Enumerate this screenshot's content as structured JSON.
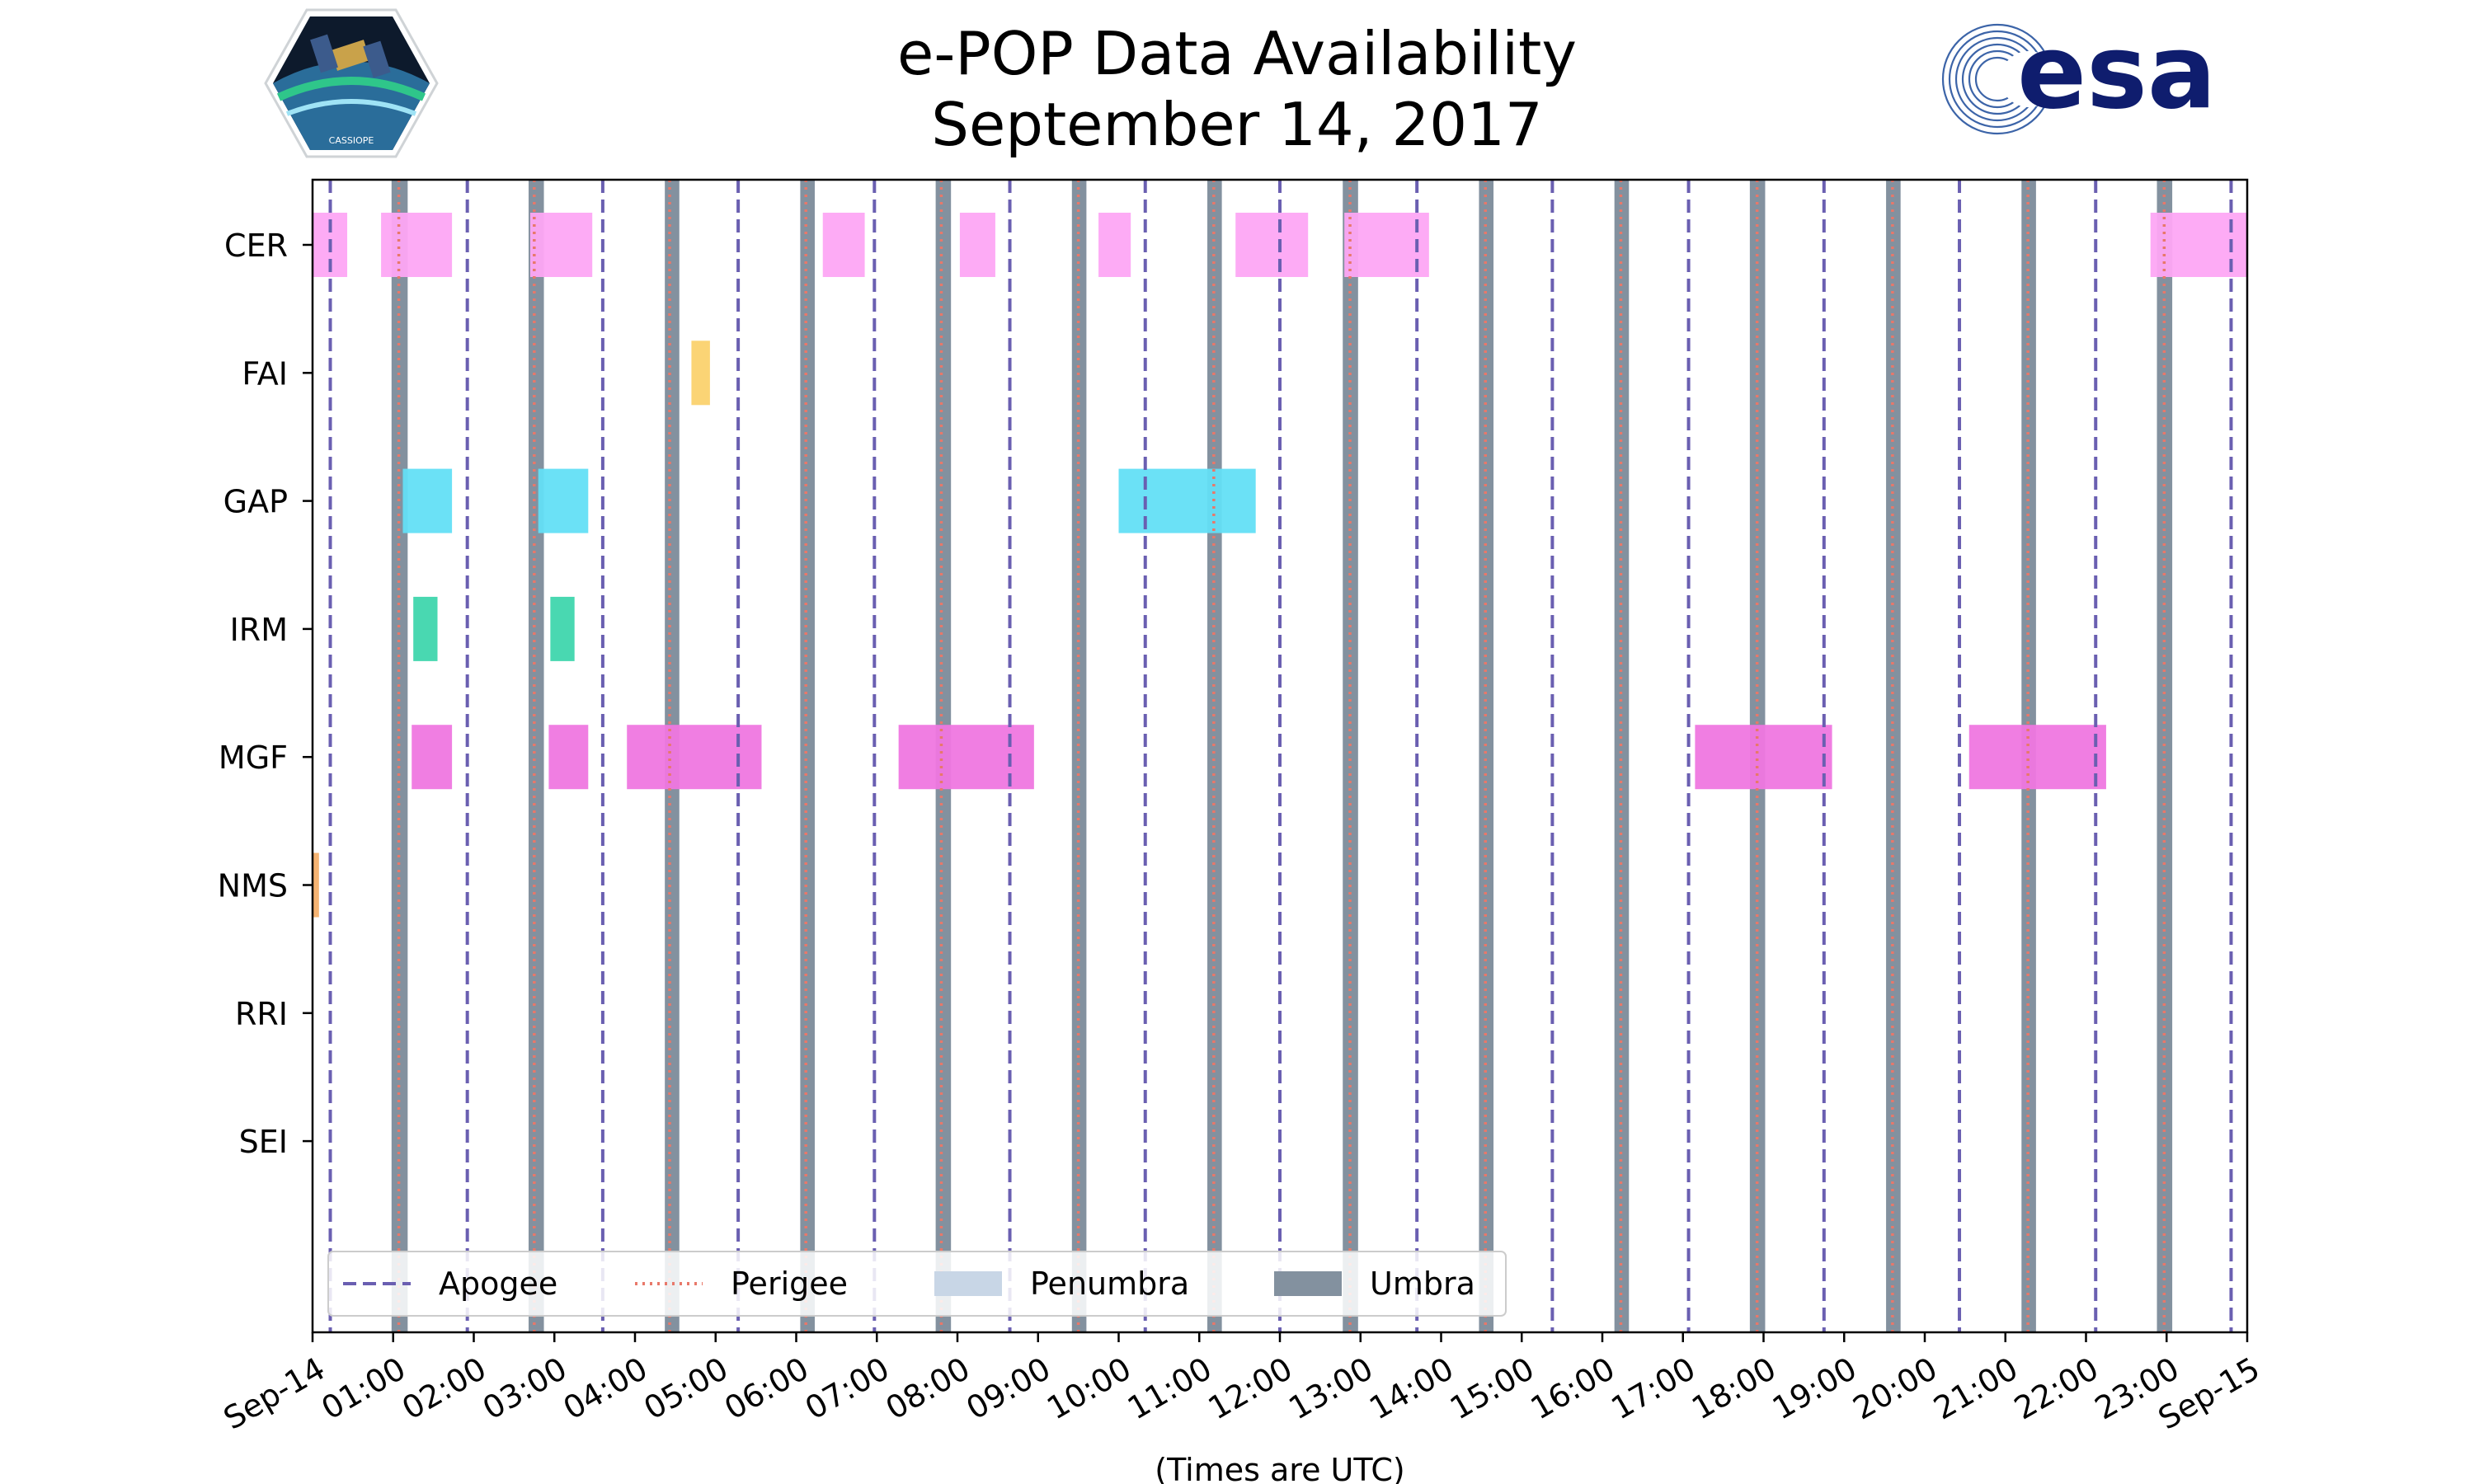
{
  "header": {
    "title_line1": "e-POP Data Availability",
    "title_line2": "September 14, 2017",
    "logo_left_text": "CASSIOPE",
    "logo_right_text": "esa"
  },
  "chart_data": {
    "type": "timeline",
    "title": "e-POP Data Availability\nSeptember 14, 2017",
    "xlabel": "(Times are UTC)",
    "ylabel": "",
    "x_unit": "hours UTC",
    "xlim": [
      0,
      24
    ],
    "xtick_labels": [
      "Sep-14",
      "01:00",
      "02:00",
      "03:00",
      "04:00",
      "05:00",
      "06:00",
      "07:00",
      "08:00",
      "09:00",
      "10:00",
      "11:00",
      "12:00",
      "13:00",
      "14:00",
      "15:00",
      "16:00",
      "17:00",
      "18:00",
      "19:00",
      "20:00",
      "21:00",
      "22:00",
      "23:00",
      "Sep-15"
    ],
    "instruments": [
      "CER",
      "FAI",
      "GAP",
      "IRM",
      "MGF",
      "NMS",
      "RRI",
      "SEI"
    ],
    "colors": {
      "CER": "#fda7f4",
      "FAI": "#fbd26e",
      "GAP": "#63dff6",
      "IRM": "#3fd6ad",
      "MGF": "#ef77e0",
      "NMS": "#f6b06a",
      "apogee": "#6a5fb1",
      "perigee": "#e8786a",
      "penumbra": "#c8d6e6",
      "umbra": "#83919f"
    },
    "availability": {
      "CER": [
        [
          0.0,
          0.43
        ],
        [
          0.85,
          1.73
        ],
        [
          2.7,
          3.47
        ],
        [
          6.33,
          6.85
        ],
        [
          8.03,
          8.47
        ],
        [
          9.75,
          10.15
        ],
        [
          11.45,
          12.35
        ],
        [
          12.8,
          13.85
        ],
        [
          22.8,
          24.0
        ]
      ],
      "FAI": [
        [
          4.7,
          4.93
        ]
      ],
      "GAP": [
        [
          1.12,
          1.73
        ],
        [
          2.8,
          3.42
        ],
        [
          10.0,
          11.7
        ]
      ],
      "IRM": [
        [
          1.25,
          1.55
        ],
        [
          2.95,
          3.25
        ]
      ],
      "MGF": [
        [
          1.23,
          1.73
        ],
        [
          2.93,
          3.42
        ],
        [
          3.9,
          5.57
        ],
        [
          7.27,
          8.95
        ],
        [
          17.15,
          18.85
        ],
        [
          20.55,
          22.25
        ]
      ],
      "NMS": [
        [
          0.0,
          0.08
        ]
      ],
      "RRI": [],
      "SEI": []
    },
    "apogee_times": [
      0.22,
      1.92,
      3.6,
      5.28,
      6.97,
      8.65,
      10.33,
      12.0,
      13.7,
      15.38,
      17.07,
      18.75,
      20.43,
      22.12,
      23.8
    ],
    "perigee_times": [
      1.07,
      2.75,
      4.43,
      6.12,
      7.8,
      9.5,
      11.18,
      12.87,
      14.55,
      16.23,
      17.92,
      19.6,
      21.28,
      22.97
    ],
    "umbra_intervals": [
      [
        0.98,
        1.18
      ],
      [
        2.68,
        2.87
      ],
      [
        4.37,
        4.55
      ],
      [
        6.05,
        6.23
      ],
      [
        7.73,
        7.92
      ],
      [
        9.42,
        9.6
      ],
      [
        11.1,
        11.28
      ],
      [
        12.78,
        12.97
      ],
      [
        14.47,
        14.65
      ],
      [
        16.15,
        16.33
      ],
      [
        17.83,
        18.02
      ],
      [
        19.52,
        19.7
      ],
      [
        21.2,
        21.38
      ],
      [
        22.88,
        23.07
      ]
    ],
    "penumbra_intervals": [],
    "legend": {
      "placement": "bottom-left",
      "entries": [
        {
          "label": "Apogee",
          "style": "dashed"
        },
        {
          "label": "Perigee",
          "style": "dotted"
        },
        {
          "label": "Penumbra",
          "style": "patch"
        },
        {
          "label": "Umbra",
          "style": "patch"
        }
      ]
    }
  }
}
